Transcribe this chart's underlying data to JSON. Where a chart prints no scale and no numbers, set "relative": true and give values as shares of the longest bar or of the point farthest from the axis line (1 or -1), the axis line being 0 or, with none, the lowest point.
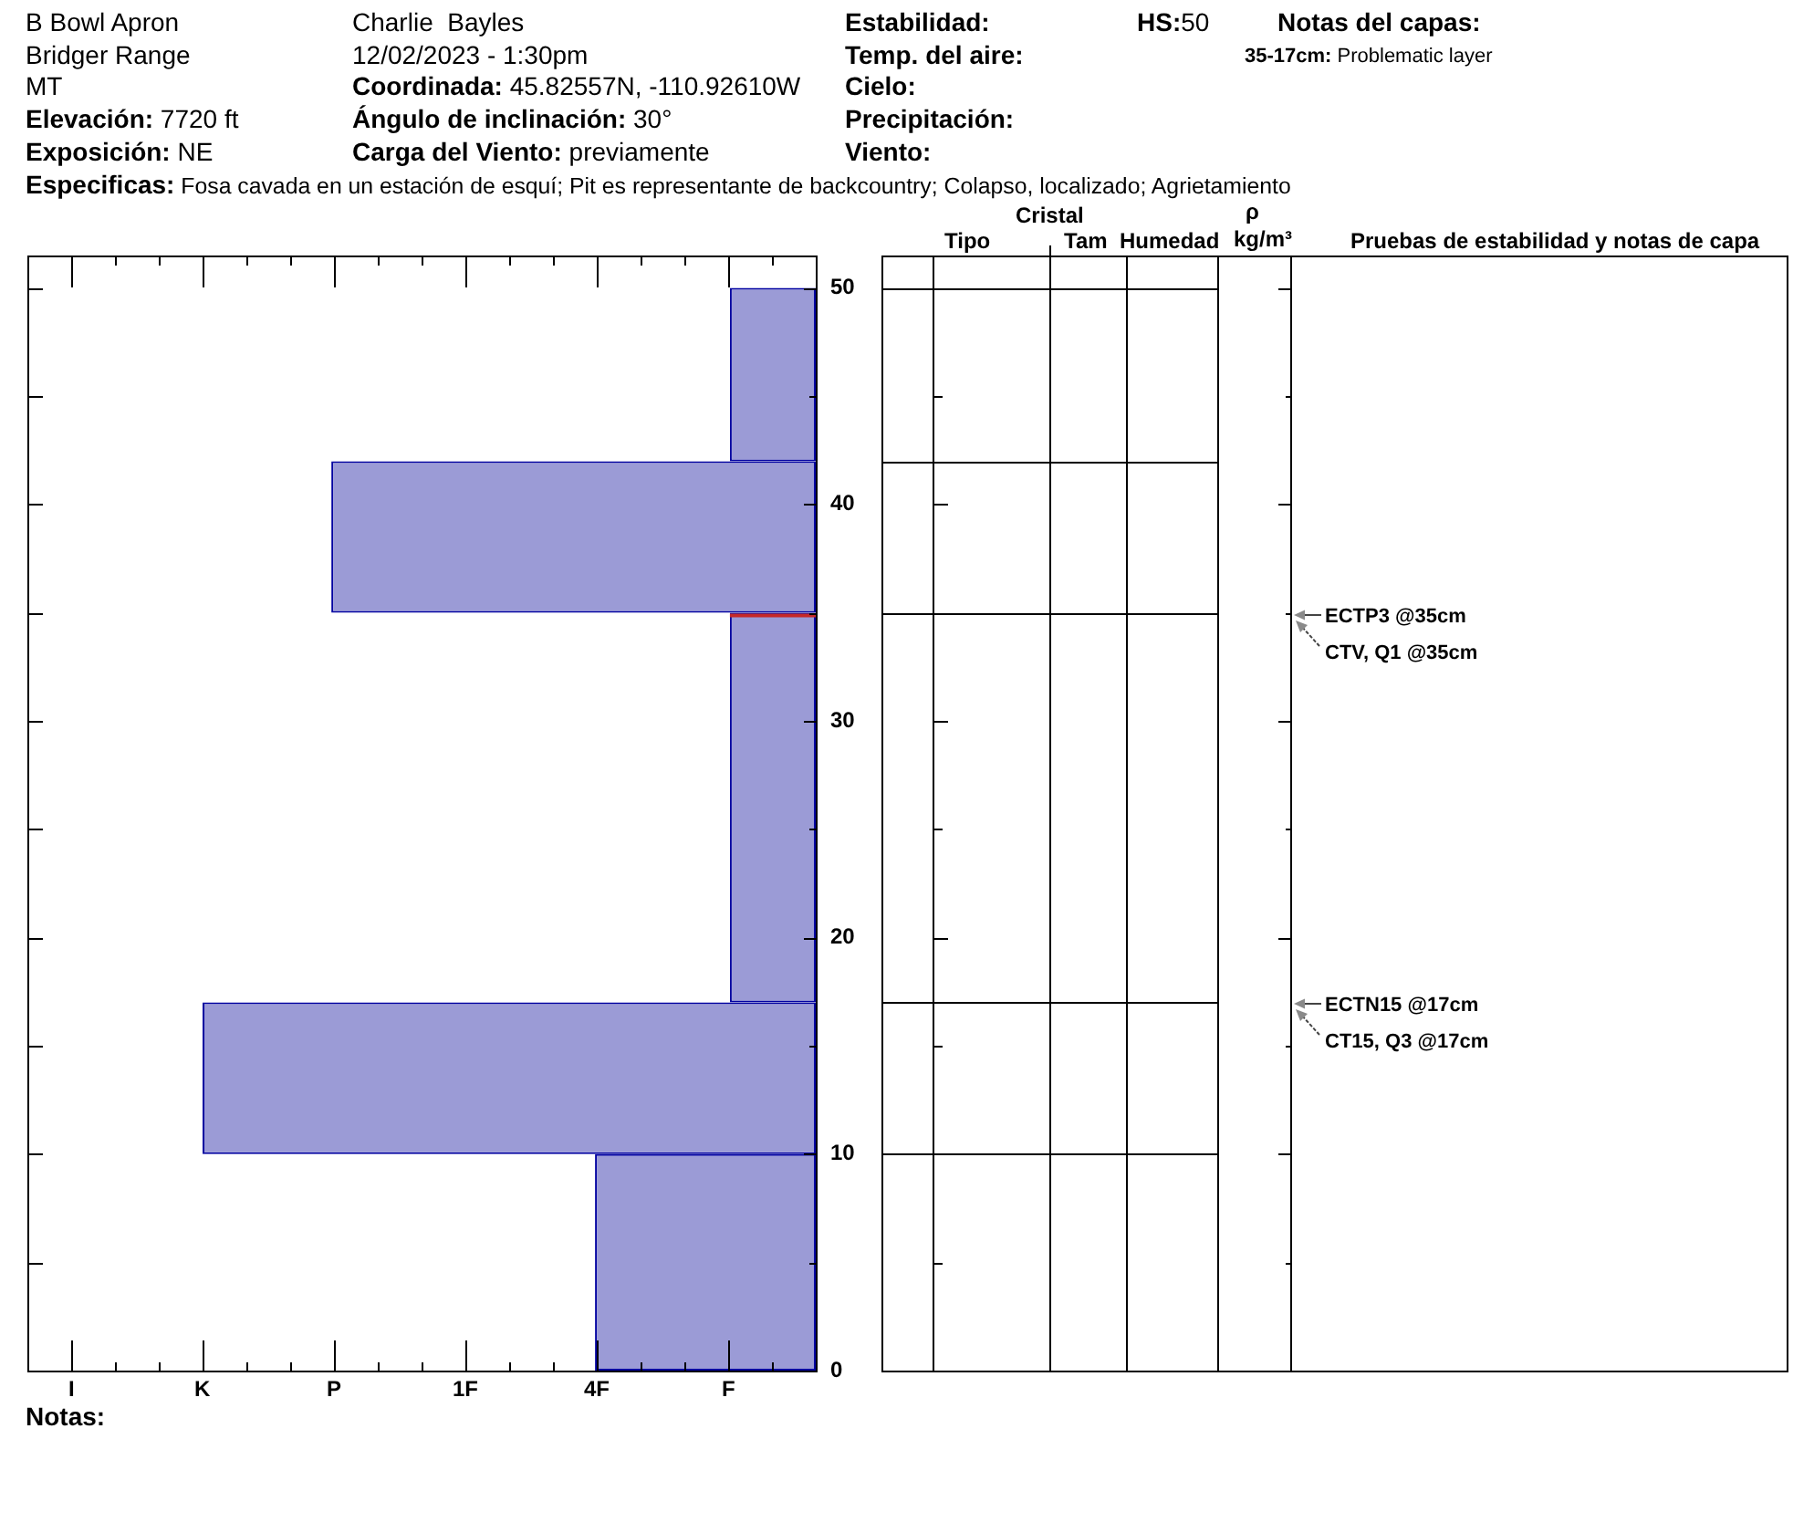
{
  "chart_data": {
    "type": "bar",
    "orientation": "horizontal",
    "relative": true,
    "x": [
      5,
      13.5,
      26,
      38.5,
      46
    ],
    "values": [
      0.36,
      1,
      0.14,
      0.79,
      0.14
    ],
    "color": "#9b9bd6",
    "ylim": [
      0,
      51.5
    ],
    "yticks": [
      0,
      {
        "value": 5,
        "label": null
      },
      10,
      {
        "value": 15,
        "label": null
      },
      20,
      {
        "value": 25,
        "label": null
      },
      30,
      {
        "value": 35,
        "label": null
      },
      40,
      {
        "value": 45,
        "label": null
      },
      50
    ],
    "ref_lines": [
      {
        "axis": "y",
        "value": 35,
        "color": "#c62828"
      }
    ],
    "annotations": [
      "B Bowl Apron",
      "Bridger Range",
      "MT",
      "Elevación: 7720 ft",
      "Exposición: NE",
      "Charlie  Bayles",
      "12/02/2023 - 1:30pm",
      "Coordinada: 45.82557N, -110.92610W",
      "Ángulo de inclinación: 30°",
      "Carga del Viento: previamente",
      "Estabilidad:",
      "Temp. del aire:",
      "Cielo:",
      "Precipitación:",
      "Viento:",
      "HS:50",
      "Notas del capas:",
      "35-17cm: Problematic layer",
      "Especificas: Fosa cavada en un estación de esquí; Pit es representante de backcountry; Colapso, localizado; Agrietamiento",
      "Tipo",
      "Cristal",
      "Tam",
      "Humedad",
      "ρ",
      "kg/m³",
      "Pruebas de estabilidad y notas de capa",
      "Notas:",
      "ECTP3 @35cm",
      "CTV, Q1 @35cm",
      "ECTN15 @17cm",
      "CT15, Q3 @17cm",
      "I",
      "K",
      "P",
      "1F",
      "4F",
      "F"
    ]
  }
}
